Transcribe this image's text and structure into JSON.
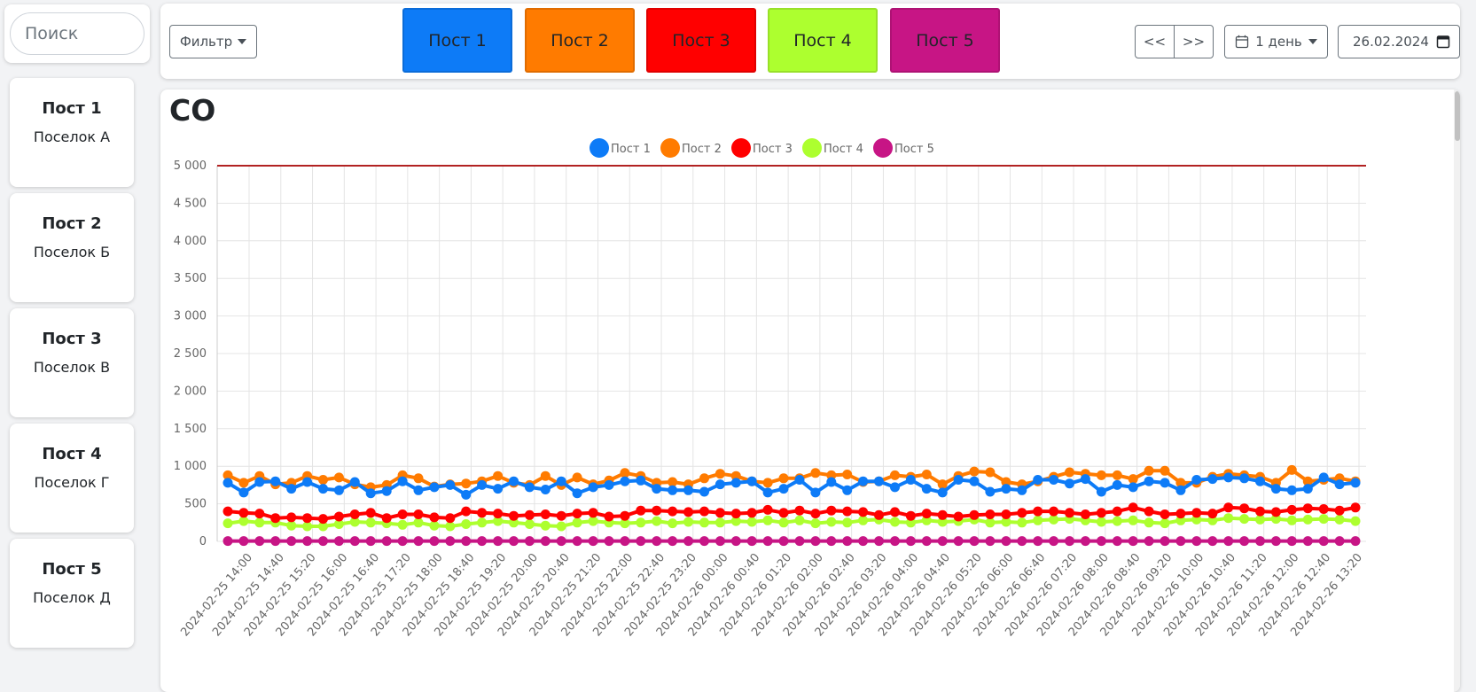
{
  "search": {
    "placeholder": "Поиск"
  },
  "sidebar": {
    "posts": [
      {
        "title": "Пост 1",
        "subtitle": "Поселок А"
      },
      {
        "title": "Пост 2",
        "subtitle": "Поселок Б"
      },
      {
        "title": "Пост 3",
        "subtitle": "Поселок В"
      },
      {
        "title": "Пост 4",
        "subtitle": "Поселок Г"
      },
      {
        "title": "Пост 5",
        "subtitle": "Поселок Д"
      }
    ]
  },
  "toolbar": {
    "filter_label": "Фильтр",
    "post_buttons": [
      {
        "label": "Пост 1",
        "color": "#0d7bf7"
      },
      {
        "label": "Пост 2",
        "color": "#ff7b00"
      },
      {
        "label": "Пост 3",
        "color": "#ff0000"
      },
      {
        "label": "Пост 4",
        "color": "#adff2f"
      },
      {
        "label": "Пост 5",
        "color": "#c71585"
      }
    ],
    "prev_label": "<<",
    "next_label": ">>",
    "period_label": "1 день",
    "date_value": "26.02.2024"
  },
  "chart_data": {
    "type": "line",
    "title": "CO",
    "ylim": [
      0,
      5000
    ],
    "yticks": [
      0,
      500,
      1000,
      1500,
      2000,
      2500,
      3000,
      3500,
      4000,
      4500,
      5000
    ],
    "ytick_labels": [
      "0",
      "500",
      "1 000",
      "1 500",
      "2 000",
      "2 500",
      "3 000",
      "3 500",
      "4 000",
      "4 500",
      "5 000"
    ],
    "threshold": {
      "value": 5000,
      "color": "#b22222"
    },
    "x_labels": [
      "2024-02-25 14:00",
      "2024-02-25 14:40",
      "2024-02-25 15:20",
      "2024-02-25 16:00",
      "2024-02-25 16:40",
      "2024-02-25 17:20",
      "2024-02-25 18:00",
      "2024-02-25 18:40",
      "2024-02-25 19:20",
      "2024-02-25 20:00",
      "2024-02-25 20:40",
      "2024-02-25 21:20",
      "2024-02-25 22:00",
      "2024-02-25 22:40",
      "2024-02-25 23:20",
      "2024-02-26 00:00",
      "2024-02-26 00:40",
      "2024-02-26 01:20",
      "2024-02-26 02:00",
      "2024-02-26 02:40",
      "2024-02-26 03:20",
      "2024-02-26 04:00",
      "2024-02-26 04:40",
      "2024-02-26 05:20",
      "2024-02-26 06:00",
      "2024-02-26 06:40",
      "2024-02-26 07:20",
      "2024-02-26 08:00",
      "2024-02-26 08:40",
      "2024-02-26 09:20",
      "2024-02-26 10:00",
      "2024-02-26 10:40",
      "2024-02-26 11:20",
      "2024-02-26 12:00",
      "2024-02-26 12:40",
      "2024-02-26 13:20"
    ],
    "series": [
      {
        "name": "Пост 1",
        "color": "#0d7bf7",
        "values": [
          780,
          650,
          790,
          800,
          700,
          790,
          700,
          680,
          790,
          640,
          670,
          800,
          680,
          720,
          750,
          620,
          750,
          700,
          800,
          720,
          690,
          800,
          640,
          720,
          750,
          800,
          810,
          700,
          680,
          680,
          660,
          760,
          780,
          800,
          650,
          700,
          820,
          650,
          790,
          680,
          800,
          800,
          720,
          820,
          700,
          650,
          820,
          800,
          660,
          700,
          680,
          820,
          820,
          770,
          830,
          660,
          750,
          720,
          800,
          780,
          680,
          820,
          830,
          850,
          840,
          800,
          700,
          680,
          700,
          850,
          760,
          780
        ]
      },
      {
        "name": "Пост 2",
        "color": "#ff7b00",
        "values": [
          880,
          780,
          870,
          760,
          780,
          870,
          820,
          850,
          760,
          720,
          750,
          880,
          840,
          730,
          760,
          770,
          800,
          870,
          780,
          750,
          870,
          750,
          850,
          760,
          810,
          910,
          870,
          780,
          790,
          760,
          840,
          900,
          870,
          800,
          780,
          840,
          840,
          910,
          880,
          890,
          790,
          800,
          880,
          860,
          890,
          760,
          870,
          930,
          920,
          790,
          760,
          800,
          860,
          920,
          900,
          880,
          880,
          830,
          940,
          940,
          780,
          780,
          860,
          900,
          880,
          860,
          780,
          950,
          800,
          820,
          840,
          800
        ]
      },
      {
        "name": "Пост 3",
        "color": "#ff0000",
        "values": [
          400,
          380,
          370,
          310,
          320,
          310,
          300,
          330,
          360,
          380,
          310,
          360,
          360,
          320,
          310,
          400,
          380,
          370,
          340,
          350,
          360,
          340,
          370,
          380,
          330,
          340,
          410,
          410,
          400,
          390,
          400,
          380,
          370,
          380,
          420,
          380,
          410,
          370,
          410,
          400,
          390,
          350,
          390,
          340,
          370,
          350,
          330,
          350,
          360,
          360,
          380,
          400,
          400,
          380,
          360,
          380,
          400,
          450,
          400,
          360,
          370,
          380,
          370,
          450,
          440,
          400,
          390,
          420,
          440,
          430,
          410,
          450
        ]
      },
      {
        "name": "Пост 4",
        "color": "#adff2f",
        "values": [
          240,
          270,
          250,
          250,
          210,
          200,
          200,
          230,
          260,
          250,
          240,
          220,
          250,
          210,
          200,
          230,
          250,
          270,
          250,
          230,
          210,
          200,
          250,
          270,
          250,
          240,
          250,
          270,
          240,
          260,
          250,
          250,
          270,
          260,
          280,
          250,
          280,
          240,
          260,
          250,
          280,
          290,
          260,
          250,
          280,
          260,
          270,
          290,
          250,
          260,
          250,
          280,
          290,
          300,
          280,
          260,
          270,
          280,
          250,
          240,
          280,
          290,
          280,
          310,
          300,
          290,
          300,
          280,
          290,
          300,
          290,
          270
        ]
      },
      {
        "name": "Пост 5",
        "color": "#c71585",
        "values": [
          5,
          5,
          5,
          5,
          5,
          5,
          5,
          5,
          5,
          5,
          5,
          5,
          5,
          5,
          5,
          5,
          5,
          5,
          5,
          5,
          5,
          5,
          5,
          5,
          5,
          5,
          5,
          5,
          5,
          5,
          5,
          5,
          5,
          5,
          5,
          5,
          5,
          5,
          5,
          5,
          5,
          5,
          5,
          5,
          5,
          5,
          5,
          5,
          5,
          5,
          5,
          5,
          5,
          5,
          5,
          5,
          5,
          5,
          5,
          5,
          5,
          5,
          5,
          5,
          5,
          5,
          5,
          5,
          5,
          5,
          5,
          5
        ]
      }
    ],
    "legend_position": "top-center"
  }
}
